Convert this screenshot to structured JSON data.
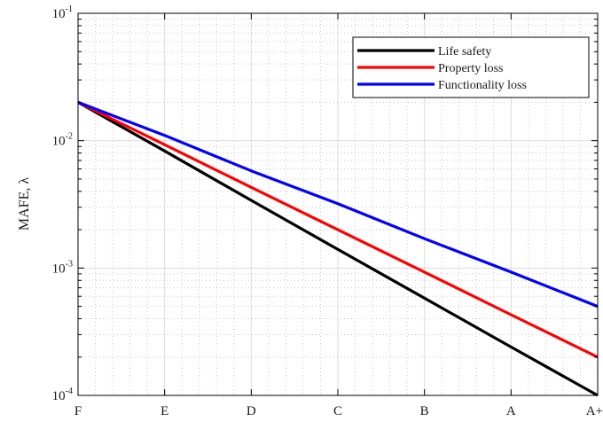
{
  "chart_data": {
    "type": "line",
    "title": "",
    "xlabel": "",
    "ylabel": "MAFE, λ",
    "y_scale": "log",
    "ylim": [
      0.0001,
      0.1
    ],
    "y_tick_labels": [
      {
        "base": "10",
        "exp": "-4",
        "value": 0.0001
      },
      {
        "base": "10",
        "exp": "-3",
        "value": 0.001
      },
      {
        "base": "10",
        "exp": "-2",
        "value": 0.01
      },
      {
        "base": "10",
        "exp": "-1",
        "value": 0.1
      }
    ],
    "categories": [
      "F",
      "E",
      "D",
      "C",
      "B",
      "A",
      "A+"
    ],
    "grid": true,
    "minor_grid": true,
    "legend_position": "top-right",
    "series": [
      {
        "name": "Life safety",
        "color": "#000000",
        "values": [
          0.02,
          0.0083,
          0.0034,
          0.0014,
          0.00058,
          0.00024,
          0.0001
        ]
      },
      {
        "name": "Property loss",
        "color": "#ff0000",
        "values": [
          0.02,
          0.0093,
          0.0043,
          0.002,
          0.00093,
          0.00043,
          0.0002
        ]
      },
      {
        "name": "Functionality loss",
        "color": "#0000ff",
        "values": [
          0.02,
          0.011,
          0.0058,
          0.0032,
          0.0017,
          0.00093,
          0.0005
        ]
      }
    ]
  }
}
